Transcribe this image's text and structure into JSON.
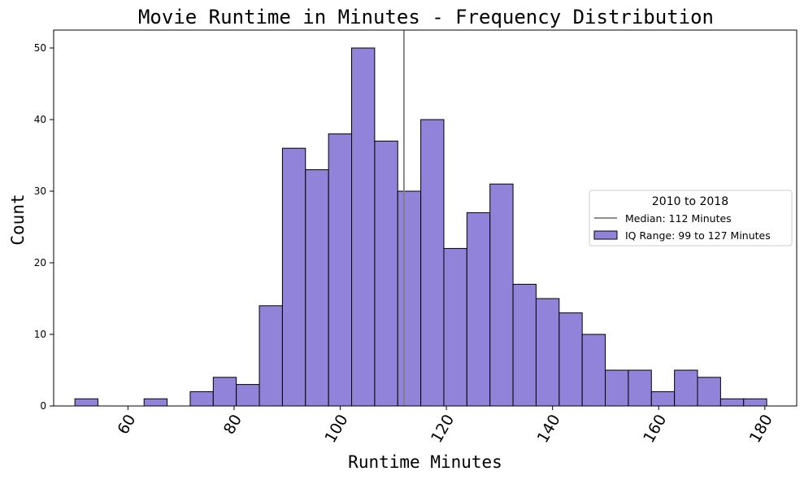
{
  "chart_data": {
    "type": "bar",
    "title": "Movie Runtime in Minutes - Frequency Distribution",
    "xlabel": "Runtime Minutes",
    "ylabel": "Count",
    "xlim": [
      46,
      186
    ],
    "ylim": [
      0,
      52.5
    ],
    "xticks": [
      60,
      80,
      100,
      120,
      140,
      160,
      180
    ],
    "yticks": [
      0,
      10,
      20,
      30,
      40,
      50
    ],
    "bin_width": 4.345,
    "bins": [
      {
        "start": 50.0,
        "count": 1
      },
      {
        "start": 54.345,
        "count": 0
      },
      {
        "start": 58.69,
        "count": 0
      },
      {
        "start": 63.035,
        "count": 1
      },
      {
        "start": 67.38,
        "count": 0
      },
      {
        "start": 71.725,
        "count": 2
      },
      {
        "start": 76.07,
        "count": 4
      },
      {
        "start": 80.415,
        "count": 3
      },
      {
        "start": 84.76,
        "count": 14
      },
      {
        "start": 89.105,
        "count": 36
      },
      {
        "start": 93.45,
        "count": 33
      },
      {
        "start": 97.795,
        "count": 38
      },
      {
        "start": 102.14,
        "count": 50
      },
      {
        "start": 106.485,
        "count": 37
      },
      {
        "start": 110.83,
        "count": 30
      },
      {
        "start": 115.175,
        "count": 40
      },
      {
        "start": 119.52,
        "count": 22
      },
      {
        "start": 123.865,
        "count": 27
      },
      {
        "start": 128.21,
        "count": 31
      },
      {
        "start": 132.555,
        "count": 17
      },
      {
        "start": 136.9,
        "count": 15
      },
      {
        "start": 141.245,
        "count": 13
      },
      {
        "start": 145.59,
        "count": 10
      },
      {
        "start": 149.935,
        "count": 5
      },
      {
        "start": 154.28,
        "count": 5
      },
      {
        "start": 158.625,
        "count": 2
      },
      {
        "start": 162.97,
        "count": 5
      },
      {
        "start": 167.315,
        "count": 4
      },
      {
        "start": 171.66,
        "count": 1
      },
      {
        "start": 176.005,
        "count": 1
      }
    ],
    "median": 112,
    "bar_color": "#9083d9",
    "bar_edge_color": "#000000",
    "median_line_color": "#808080",
    "grid": false,
    "legend": {
      "placement": "center-right",
      "title": "2010 to 2018",
      "entries": [
        {
          "label": "Median: 112 Minutes",
          "kind": "line"
        },
        {
          "label": "IQ Range: 99 to 127 Minutes",
          "kind": "patch"
        }
      ]
    }
  }
}
